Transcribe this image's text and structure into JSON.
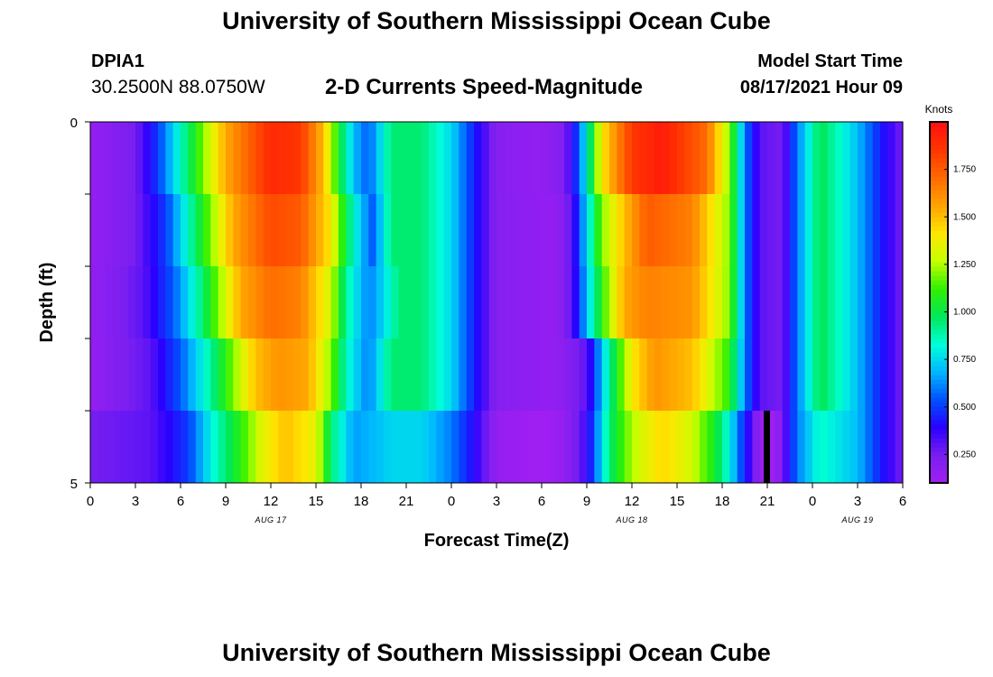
{
  "page": {
    "title_top": "University of Southern Mississippi Ocean Cube",
    "title_bottom": "University of Southern Mississippi Ocean Cube",
    "station_id": "DPIA1",
    "station_coords": "30.2500N  88.0750W",
    "chart_heading": "2-D Currents Speed-Magnitude",
    "model_start_label": "Model Start Time",
    "model_start_value": "08/17/2021 Hour 09"
  },
  "colors": {
    "scale": [
      "#a21ef2",
      "#7a1ff0",
      "#2a00ff",
      "#0050ff",
      "#00b6ff",
      "#00ffd8",
      "#00e85a",
      "#30f000",
      "#c4ff00",
      "#ffe600",
      "#ffa300",
      "#ff6a00",
      "#ff3500",
      "#ff0f0f"
    ]
  },
  "chart_data": {
    "type": "heatmap",
    "title": "2-D Currents Speed-Magnitude",
    "xlabel": "Forecast Time(Z)",
    "ylabel": "Depth (ft)",
    "x_tick_labels": [
      "0",
      "3",
      "6",
      "9",
      "12",
      "15",
      "18",
      "21",
      "0",
      "3",
      "6",
      "9",
      "12",
      "15",
      "18",
      "21",
      "0",
      "3",
      "6"
    ],
    "x_range_hours": [
      0,
      54
    ],
    "date_labels": [
      {
        "text": "AUG 17",
        "hour": 12
      },
      {
        "text": "AUG 18",
        "hour": 36
      },
      {
        "text": "AUG 19",
        "hour": 51
      }
    ],
    "y_tick_labels": [
      "0",
      "5"
    ],
    "y_range_ft": [
      0,
      5
    ],
    "depth_rows_ft": [
      0.5,
      1.5,
      2.5,
      3.5,
      4.5
    ],
    "colorbar": {
      "label": "Knots",
      "range": [
        0.1,
        2.0
      ],
      "ticks": [
        "0.250",
        "0.500",
        "0.750",
        "1.000",
        "1.250",
        "1.500",
        "1.750"
      ],
      "tick_values": [
        0.25,
        0.5,
        0.75,
        1.0,
        1.25,
        1.5,
        1.75
      ]
    },
    "current_marker": {
      "hour": 45,
      "depth_from_ft": 4.0,
      "depth_to_ft": 5.0
    },
    "speed_profiles": [
      {
        "depth_ft": 0.5,
        "keys": [
          [
            0,
            0.15
          ],
          [
            3,
            0.25
          ],
          [
            4.5,
            0.5
          ],
          [
            6,
            0.85
          ],
          [
            7.5,
            1.2
          ],
          [
            9,
            1.55
          ],
          [
            12,
            1.9
          ],
          [
            14,
            1.85
          ],
          [
            15.5,
            1.5
          ],
          [
            16.5,
            1.05
          ],
          [
            17.5,
            0.7
          ],
          [
            18.5,
            0.55
          ],
          [
            20,
            0.95
          ],
          [
            22,
            0.95
          ],
          [
            24,
            0.75
          ],
          [
            25.5,
            0.45
          ],
          [
            27,
            0.2
          ],
          [
            30,
            0.15
          ],
          [
            31.5,
            0.22
          ],
          [
            32.5,
            0.55
          ],
          [
            34,
            1.4
          ],
          [
            36,
            1.85
          ],
          [
            38,
            1.95
          ],
          [
            41,
            1.7
          ],
          [
            42.5,
            1.2
          ],
          [
            43.5,
            0.6
          ],
          [
            44.5,
            0.3
          ],
          [
            46,
            0.25
          ],
          [
            47,
            0.6
          ],
          [
            48.5,
            1.0
          ],
          [
            51,
            0.7
          ],
          [
            52.5,
            0.45
          ],
          [
            54,
            0.25
          ]
        ]
      },
      {
        "depth_ft": 1.5,
        "keys": [
          [
            0,
            0.15
          ],
          [
            3,
            0.25
          ],
          [
            5,
            0.5
          ],
          [
            6.5,
            0.85
          ],
          [
            8,
            1.2
          ],
          [
            9.5,
            1.55
          ],
          [
            12,
            1.8
          ],
          [
            14,
            1.75
          ],
          [
            16,
            1.4
          ],
          [
            17,
            1.0
          ],
          [
            18,
            0.7
          ],
          [
            18.8,
            0.55
          ],
          [
            20,
            0.95
          ],
          [
            22,
            0.95
          ],
          [
            24,
            0.75
          ],
          [
            25.5,
            0.45
          ],
          [
            27,
            0.2
          ],
          [
            31,
            0.15
          ],
          [
            32,
            0.3
          ],
          [
            34,
            1.2
          ],
          [
            35.5,
            1.5
          ],
          [
            37,
            1.75
          ],
          [
            40,
            1.65
          ],
          [
            42.5,
            1.2
          ],
          [
            43.5,
            0.6
          ],
          [
            44.5,
            0.3
          ],
          [
            46,
            0.25
          ],
          [
            47,
            0.6
          ],
          [
            48.5,
            1.0
          ],
          [
            51,
            0.7
          ],
          [
            52.5,
            0.45
          ],
          [
            54,
            0.25
          ]
        ]
      },
      {
        "depth_ft": 2.5,
        "keys": [
          [
            0,
            0.15
          ],
          [
            3.5,
            0.3
          ],
          [
            5.5,
            0.55
          ],
          [
            7,
            0.85
          ],
          [
            8.5,
            1.2
          ],
          [
            10,
            1.55
          ],
          [
            12,
            1.7
          ],
          [
            14,
            1.65
          ],
          [
            16,
            1.3
          ],
          [
            17,
            0.9
          ],
          [
            18.5,
            0.6
          ],
          [
            19.5,
            0.75
          ],
          [
            20.5,
            0.95
          ],
          [
            22,
            0.95
          ],
          [
            24,
            0.75
          ],
          [
            25.5,
            0.45
          ],
          [
            27,
            0.2
          ],
          [
            31,
            0.15
          ],
          [
            32,
            0.3
          ],
          [
            34,
            1.1
          ],
          [
            35.5,
            1.55
          ],
          [
            37,
            1.65
          ],
          [
            40,
            1.6
          ],
          [
            42.5,
            1.2
          ],
          [
            43.5,
            0.6
          ],
          [
            44.5,
            0.3
          ],
          [
            46,
            0.25
          ],
          [
            47,
            0.6
          ],
          [
            48.5,
            1.0
          ],
          [
            51,
            0.7
          ],
          [
            52.5,
            0.45
          ],
          [
            54,
            0.25
          ]
        ]
      },
      {
        "depth_ft": 3.5,
        "keys": [
          [
            0,
            0.15
          ],
          [
            4,
            0.3
          ],
          [
            6,
            0.55
          ],
          [
            8,
            0.9
          ],
          [
            9.5,
            1.2
          ],
          [
            11,
            1.5
          ],
          [
            12.5,
            1.6
          ],
          [
            14.5,
            1.55
          ],
          [
            16,
            1.2
          ],
          [
            17,
            0.85
          ],
          [
            18.5,
            0.6
          ],
          [
            20,
            0.95
          ],
          [
            22,
            0.95
          ],
          [
            24,
            0.75
          ],
          [
            25.5,
            0.45
          ],
          [
            27,
            0.2
          ],
          [
            31,
            0.15
          ],
          [
            33,
            0.3
          ],
          [
            34.5,
            0.9
          ],
          [
            36,
            1.4
          ],
          [
            37.5,
            1.6
          ],
          [
            40,
            1.5
          ],
          [
            42.5,
            1.1
          ],
          [
            43.5,
            0.6
          ],
          [
            44.5,
            0.3
          ],
          [
            46,
            0.25
          ],
          [
            47,
            0.6
          ],
          [
            48.5,
            1.0
          ],
          [
            51,
            0.7
          ],
          [
            52.5,
            0.45
          ],
          [
            54,
            0.25
          ]
        ]
      },
      {
        "depth_ft": 4.5,
        "keys": [
          [
            0,
            0.25
          ],
          [
            4,
            0.3
          ],
          [
            6.5,
            0.5
          ],
          [
            8,
            0.8
          ],
          [
            10,
            1.1
          ],
          [
            11.5,
            1.35
          ],
          [
            13,
            1.5
          ],
          [
            15,
            1.35
          ],
          [
            16,
            0.95
          ],
          [
            17.5,
            0.65
          ],
          [
            19,
            0.7
          ],
          [
            20,
            0.75
          ],
          [
            22,
            0.75
          ],
          [
            24,
            0.6
          ],
          [
            25.5,
            0.4
          ],
          [
            27,
            0.15
          ],
          [
            30,
            0.1
          ],
          [
            31.5,
            0.15
          ],
          [
            33,
            0.35
          ],
          [
            34.5,
            0.95
          ],
          [
            36,
            1.25
          ],
          [
            38,
            1.45
          ],
          [
            40,
            1.3
          ],
          [
            41.5,
            1.05
          ],
          [
            42.5,
            0.8
          ],
          [
            43.5,
            0.45
          ],
          [
            44.5,
            0.15
          ],
          [
            45.5,
            0.1
          ],
          [
            46,
            0.25
          ],
          [
            47,
            0.6
          ],
          [
            48.5,
            0.85
          ],
          [
            51,
            0.7
          ],
          [
            52.5,
            0.45
          ],
          [
            54,
            0.25
          ]
        ]
      }
    ]
  }
}
